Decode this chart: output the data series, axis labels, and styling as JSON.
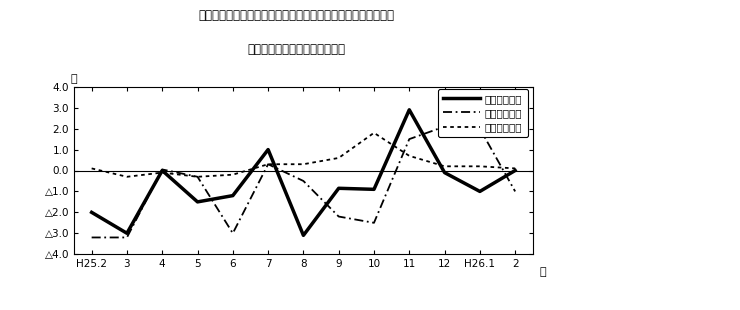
{
  "title_line1": "第４図　賓金、労働時間、常用雇用指数　対前年同月比の推移",
  "title_line2": "（規横５人以上　調査産業計）",
  "xlabel": "月",
  "ylabel": "％",
  "x_labels": [
    "H25.2",
    "3",
    "4",
    "5",
    "6",
    "7",
    "8",
    "9",
    "10",
    "11",
    "12",
    "H26.1",
    "2"
  ],
  "ylim": [
    -4.0,
    4.0
  ],
  "yticks": [
    -4.0,
    -3.0,
    -2.0,
    -1.0,
    0.0,
    1.0,
    2.0,
    3.0,
    4.0
  ],
  "ytick_labels": [
    "△4.0",
    "△3.0",
    "△2.0",
    "△1.0",
    "0.0",
    "1.0",
    "2.0",
    "3.0",
    "4.0"
  ],
  "legend_labels": [
    "現金給与総額",
    "総実労働時間",
    "常用雇用指数"
  ],
  "series_genkin": [
    -2.0,
    -3.0,
    0.0,
    -1.5,
    -1.2,
    1.0,
    -3.1,
    -0.85,
    -0.9,
    2.9,
    -0.1,
    -1.0,
    0.0
  ],
  "series_sojitsu": [
    -3.2,
    -3.2,
    0.05,
    -0.3,
    -3.0,
    0.3,
    -0.5,
    -2.2,
    -2.5,
    1.5,
    2.1,
    2.0,
    -1.0
  ],
  "series_joyoko": [
    0.1,
    -0.3,
    -0.1,
    -0.3,
    -0.2,
    0.3,
    0.3,
    0.6,
    1.8,
    0.7,
    0.2,
    0.2,
    0.1
  ],
  "background_color": "#ffffff",
  "figsize": [
    7.4,
    3.1
  ],
  "dpi": 100
}
